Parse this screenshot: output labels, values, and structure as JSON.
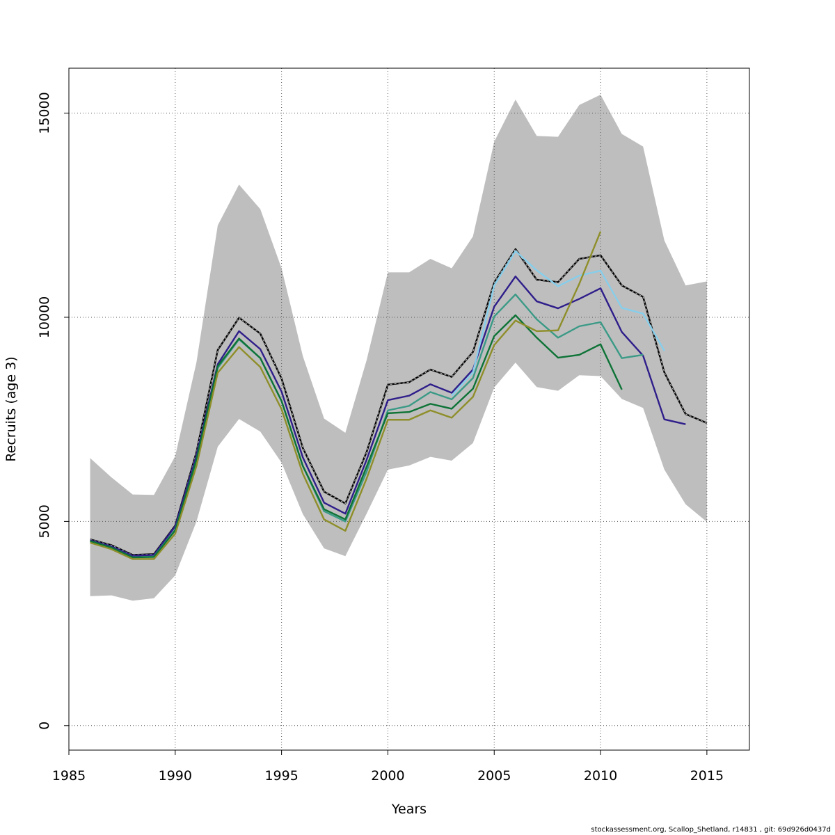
{
  "chart_data": {
    "type": "line",
    "title": "",
    "xlabel": "Years",
    "ylabel": "Recruits (age 3)",
    "xlim": [
      1985,
      2017
    ],
    "ylim": [
      -600,
      16100
    ],
    "x_ticks": [
      1985,
      1990,
      1995,
      2000,
      2005,
      2010,
      2015
    ],
    "x_tick_labels": [
      "1985",
      "1990",
      "1995",
      "2000",
      "2005",
      "2010",
      "2015"
    ],
    "y_ticks": [
      0,
      5000,
      10000,
      15000
    ],
    "y_tick_labels": [
      "0",
      "5000",
      "10000",
      "15000"
    ],
    "grid": true,
    "legend": "none",
    "band": {
      "color": "#bebebe",
      "x": [
        1986,
        1987,
        1988,
        1989,
        1990,
        1991,
        1992,
        1993,
        1994,
        1995,
        1996,
        1997,
        1998,
        1999,
        2000,
        2001,
        2002,
        2003,
        2004,
        2005,
        2006,
        2007,
        2008,
        2009,
        2010,
        2011,
        2012,
        2013,
        2014,
        2015
      ],
      "upper": [
        6550,
        6080,
        5660,
        5650,
        6600,
        8900,
        12250,
        13250,
        12650,
        11200,
        9050,
        7520,
        7170,
        8950,
        11100,
        11100,
        11430,
        11200,
        11980,
        14300,
        15330,
        14440,
        14420,
        15200,
        15450,
        14490,
        14180,
        11880,
        10780,
        10880
      ],
      "lower": [
        3170,
        3190,
        3060,
        3120,
        3680,
        5000,
        6830,
        7510,
        7200,
        6440,
        5180,
        4340,
        4150,
        5190,
        6270,
        6370,
        6580,
        6490,
        6920,
        8280,
        8890,
        8290,
        8200,
        8580,
        8560,
        8000,
        7780,
        6270,
        5420,
        4990
      ]
    },
    "series": [
      {
        "color": "#000000",
        "dashed": true,
        "x": [
          1986,
          1987,
          1988,
          1989,
          1990,
          1991,
          1992,
          1993,
          1994,
          1995,
          1996,
          1997,
          1998,
          1999,
          2000,
          2001,
          2002,
          2003,
          2004,
          2005,
          2006,
          2007,
          2008,
          2009,
          2010,
          2011,
          2012,
          2013,
          2014,
          2015
        ],
        "values": [
          4560,
          4420,
          4180,
          4200,
          4900,
          6700,
          9200,
          9990,
          9600,
          8500,
          6800,
          5730,
          5440,
          6700,
          8350,
          8410,
          8720,
          8540,
          9150,
          10850,
          11670,
          10920,
          10860,
          11430,
          11520,
          10780,
          10500,
          8650,
          7630,
          7410
        ]
      },
      {
        "color": "#2e1e8a",
        "x": [
          1986,
          1987,
          1988,
          1989,
          1990,
          1991,
          1992,
          1993,
          1994,
          1995,
          1996,
          1997,
          1998,
          1999,
          2000,
          2001,
          2002,
          2003,
          2004,
          2005,
          2006,
          2007,
          2008,
          2009,
          2010,
          2011,
          2012,
          2013,
          2014
        ],
        "values": [
          4540,
          4390,
          4160,
          4180,
          4880,
          6620,
          8850,
          9660,
          9220,
          8180,
          6570,
          5460,
          5190,
          6510,
          7970,
          8080,
          8360,
          8150,
          8720,
          10260,
          11000,
          10390,
          10220,
          10450,
          10710,
          9640,
          9060,
          7500,
          7380
        ]
      },
      {
        "color": "#87ceeb",
        "x": [
          2003,
          2004,
          2005,
          2006,
          2007,
          2008,
          2009,
          2010,
          2011,
          2012,
          2013
        ],
        "values": [
          8080,
          8650,
          10780,
          11620,
          11150,
          10760,
          11020,
          11140,
          10230,
          10090,
          9180
        ]
      },
      {
        "color": "#3a9a86",
        "x": [
          1986,
          1987,
          1988,
          1989,
          1990,
          1991,
          1992,
          1993,
          1994,
          1995,
          1996,
          1997,
          1998,
          1999,
          2000,
          2001,
          2002,
          2003,
          2004,
          2005,
          2006,
          2007,
          2008,
          2009,
          2010,
          2011,
          2012
        ],
        "values": [
          4500,
          4360,
          4120,
          4140,
          4800,
          6480,
          8760,
          9460,
          9000,
          7950,
          6360,
          5250,
          5000,
          6220,
          7720,
          7830,
          8170,
          7990,
          8510,
          10020,
          10560,
          9950,
          9500,
          9780,
          9880,
          9000,
          9080
        ]
      },
      {
        "color": "#0d7336",
        "x": [
          1986,
          1987,
          1988,
          1989,
          1990,
          1991,
          1992,
          1993,
          1994,
          1995,
          1996,
          1997,
          1998,
          1999,
          2000,
          2001,
          2002,
          2003,
          2004,
          2005,
          2006,
          2007,
          2008,
          2009,
          2010,
          2011
        ],
        "values": [
          4520,
          4360,
          4120,
          4130,
          4780,
          6520,
          8800,
          9480,
          9000,
          7950,
          6360,
          5300,
          5050,
          6340,
          7650,
          7680,
          7880,
          7760,
          8250,
          9540,
          10050,
          9500,
          9010,
          9080,
          9340,
          8230
        ]
      },
      {
        "color": "#8e8e2a",
        "x": [
          1986,
          1987,
          1988,
          1989,
          1990,
          1991,
          1992,
          1993,
          1994,
          1995,
          1996,
          1997,
          1998,
          1999,
          2000,
          2001,
          2002,
          2003,
          2004,
          2005,
          2006,
          2007,
          2008,
          2009,
          2010
        ],
        "values": [
          4480,
          4320,
          4080,
          4080,
          4700,
          6360,
          8640,
          9270,
          8780,
          7750,
          6170,
          5050,
          4770,
          6050,
          7490,
          7490,
          7720,
          7540,
          8050,
          9320,
          9920,
          9660,
          9680,
          10820,
          12100
        ]
      }
    ]
  },
  "footer_text": "stockassessment.org, Scallop_Shetland, r14831 , git: 69d926d0437d"
}
